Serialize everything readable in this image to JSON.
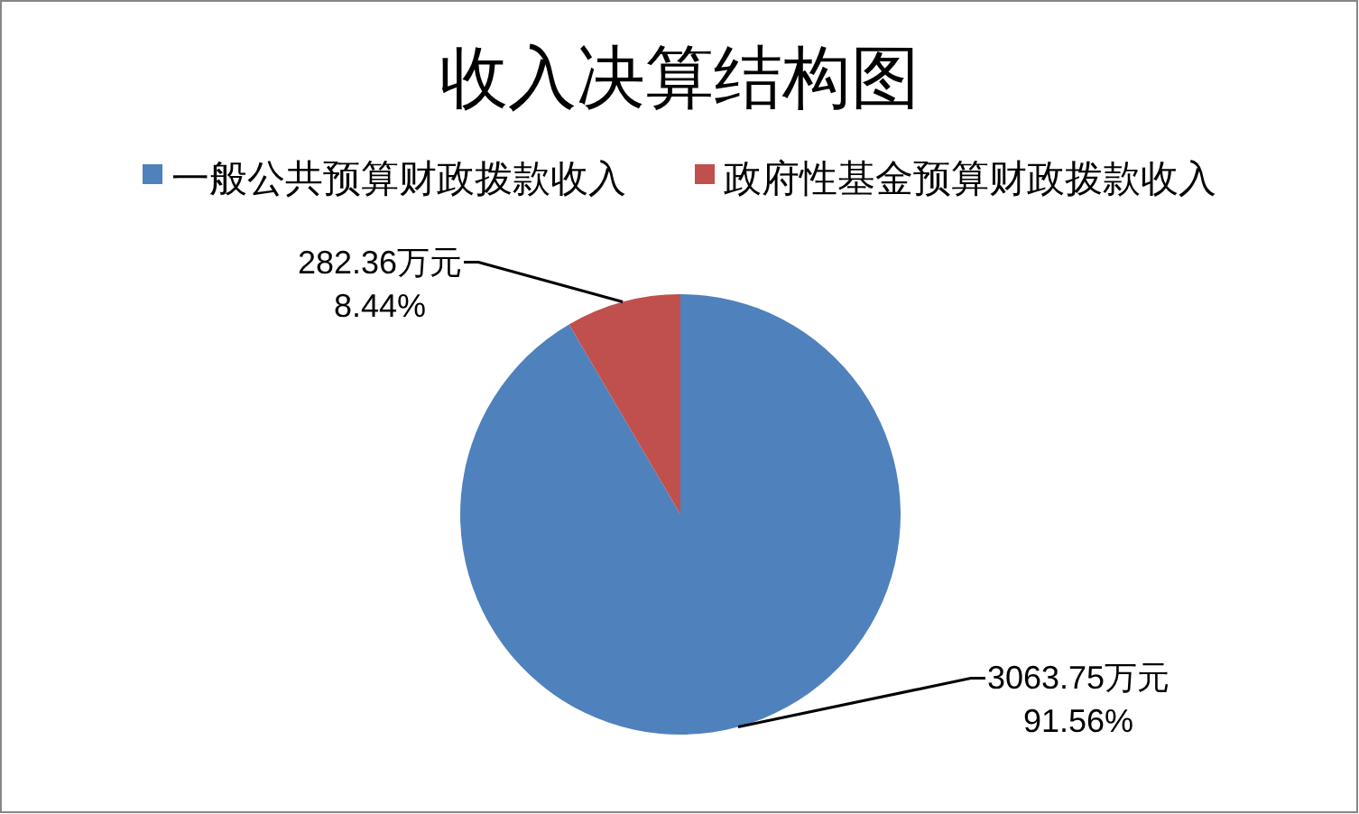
{
  "chart_data": {
    "type": "pie",
    "title": "收入决算结构图",
    "categories": [
      "一般公共预算财政拨款收入",
      "政府性基金预算财政拨款收入"
    ],
    "values": [
      3063.75,
      282.36
    ],
    "colors": [
      "#4f81bd",
      "#c0504d"
    ],
    "value_labels": [
      "3063.75万元\n91.56%",
      "282.36万元\n8.44%"
    ],
    "legend": "top"
  }
}
